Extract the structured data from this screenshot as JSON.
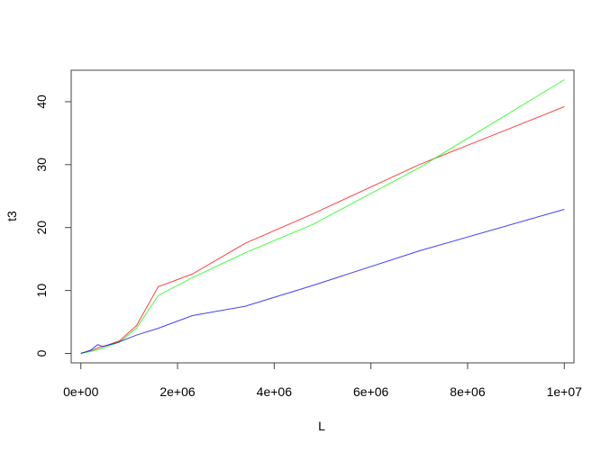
{
  "chart_data": {
    "type": "line",
    "title": "",
    "xlabel": "L",
    "ylabel": "t3",
    "xlim": [
      -200000,
      10200000
    ],
    "ylim": [
      -1.5,
      45.0
    ],
    "x_ticks": [
      {
        "value": 0,
        "label": "0e+00"
      },
      {
        "value": 2000000,
        "label": "2e+06"
      },
      {
        "value": 4000000,
        "label": "4e+06"
      },
      {
        "value": 6000000,
        "label": "6e+06"
      },
      {
        "value": 8000000,
        "label": "8e+06"
      },
      {
        "value": 10000000,
        "label": "1e+07"
      }
    ],
    "y_ticks": [
      {
        "value": 0,
        "label": "0"
      },
      {
        "value": 10,
        "label": "10"
      },
      {
        "value": 20,
        "label": "20"
      },
      {
        "value": 30,
        "label": "30"
      },
      {
        "value": 40,
        "label": "40"
      }
    ],
    "grid": false,
    "legend": "none",
    "series": [
      {
        "color": "#ff0000",
        "x": [
          0,
          200000,
          400000,
          550000,
          800000,
          1150000,
          1600000,
          2300000,
          3400000,
          4800000,
          7000000,
          10000000
        ],
        "y": [
          0.0,
          0.4,
          1.0,
          1.3,
          2.0,
          4.4,
          10.6,
          12.6,
          17.5,
          22.2,
          30.0,
          39.2
        ]
      },
      {
        "color": "#00ff00",
        "x": [
          0,
          200000,
          400000,
          550000,
          800000,
          1150000,
          1600000,
          2300000,
          3400000,
          4800000,
          7000000,
          10000000
        ],
        "y": [
          0.0,
          0.3,
          0.7,
          1.1,
          1.8,
          4.0,
          9.2,
          12.0,
          16.0,
          20.5,
          29.5,
          43.5
        ]
      },
      {
        "color": "#0000ff",
        "x": [
          0,
          200000,
          350000,
          450000,
          750000,
          1150000,
          1600000,
          2300000,
          3400000,
          4800000,
          7000000,
          10000000
        ],
        "y": [
          0.0,
          0.5,
          1.4,
          1.1,
          1.7,
          2.9,
          4.0,
          6.0,
          7.5,
          10.8,
          16.3,
          22.9
        ]
      }
    ]
  }
}
